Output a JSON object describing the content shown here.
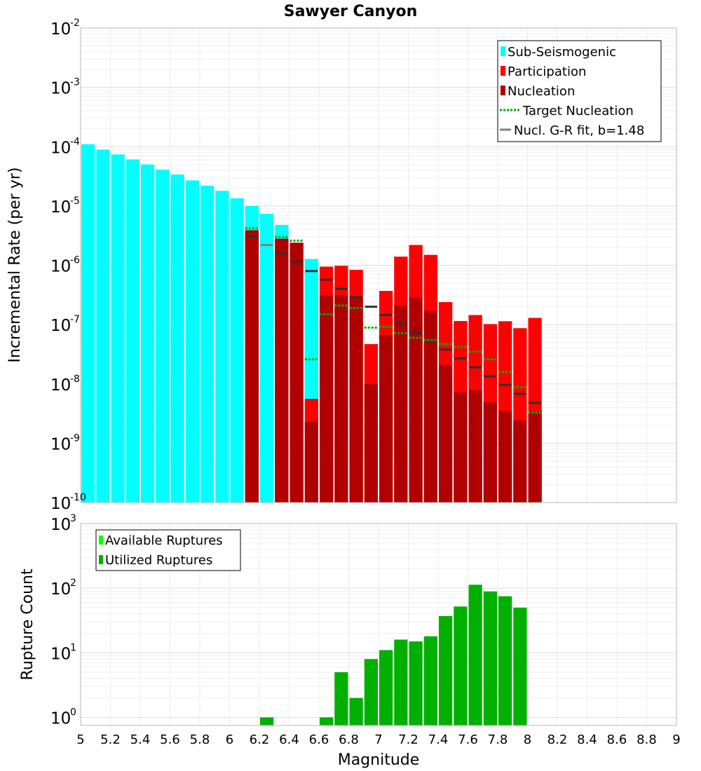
{
  "title": "Sawyer Canyon",
  "colors": {
    "sub_seismogenic": "#00ffff",
    "participation": "#ff0000",
    "nucleation": "#b00000",
    "target_nucleation": "#00b000",
    "gr_fit": "#808080",
    "available": "#00ff00",
    "utilized": "#00b000"
  },
  "chart_data": [
    {
      "type": "bar",
      "panel": "top",
      "title": "Sawyer Canyon",
      "xlabel": "Magnitude",
      "ylabel": "Incremental Rate (per yr)",
      "yscale": "log",
      "xlim": [
        5,
        9
      ],
      "ylim": [
        1e-10,
        0.01
      ],
      "bin_width": 0.1,
      "legend_position": "top-right",
      "legend": [
        "Sub-Seismogenic",
        "Participation",
        "Nucleation",
        "Target Nucleation",
        "Nucl. G-R fit, b=1.48"
      ],
      "y_tick_exponents": [
        "-10",
        "-9",
        "-8",
        "-7",
        "-6",
        "-5",
        "-4",
        "-3",
        "-2"
      ],
      "sub_seismogenic": {
        "x": [
          5.05,
          5.15,
          5.25,
          5.35,
          5.45,
          5.55,
          5.65,
          5.75,
          5.85,
          5.95,
          6.05,
          6.15,
          6.25,
          6.35,
          6.55
        ],
        "values": [
          0.00011,
          8.9e-05,
          7.4e-05,
          6.1e-05,
          5e-05,
          4.1e-05,
          3.4e-05,
          2.7e-05,
          2.2e-05,
          1.8e-05,
          1.35e-05,
          1e-05,
          7.4e-06,
          4.8e-06,
          1.28e-06
        ]
      },
      "participation": {
        "x": [
          6.15,
          6.35,
          6.45,
          6.55,
          6.65,
          6.75,
          6.85,
          6.95,
          7.05,
          7.15,
          7.25,
          7.35,
          7.45,
          7.55,
          7.65,
          7.75,
          7.85,
          7.95,
          8.05
        ],
        "values": [
          3.9e-06,
          2.8e-06,
          2.4e-06,
          5.6e-09,
          9.5e-07,
          9.8e-07,
          8.4e-07,
          4.7e-08,
          3.7e-07,
          1.4e-06,
          2.2e-06,
          1.5e-06,
          2.4e-07,
          1.15e-07,
          1.45e-07,
          1.02e-07,
          1.14e-07,
          8.7e-08,
          1.3e-07
        ]
      },
      "nucleation": {
        "x": [
          6.15,
          6.35,
          6.45,
          6.55,
          6.65,
          6.75,
          6.85,
          6.95,
          7.05,
          7.15,
          7.25,
          7.35,
          7.45,
          7.55,
          7.65,
          7.75,
          7.85,
          7.95,
          8.05
        ],
        "values": [
          3.9e-06,
          2.8e-06,
          2.4e-06,
          2.3e-09,
          3.1e-07,
          3.1e-07,
          2.9e-07,
          1e-08,
          6.6e-08,
          2.1e-07,
          2.9e-07,
          1.7e-07,
          2.1e-08,
          7.2e-09,
          7.9e-09,
          4.9e-09,
          3.5e-09,
          2.4e-09,
          3.5e-09
        ]
      },
      "target_nucleation": {
        "x": [
          6.15,
          6.35,
          6.45,
          6.55,
          6.65,
          6.75,
          6.85,
          6.95,
          7.05,
          7.15,
          7.25,
          7.35,
          7.45,
          7.55,
          7.65,
          7.75,
          7.85,
          7.95,
          8.05
        ],
        "values": [
          4.2e-06,
          3e-06,
          2.6e-06,
          2.6e-08,
          1.5e-07,
          2.1e-07,
          1.9e-07,
          8.9e-08,
          9.2e-08,
          7.2e-08,
          6e-08,
          5.5e-08,
          4.7e-08,
          4.2e-08,
          3.5e-08,
          2.6e-08,
          1.6e-08,
          8.8e-09,
          3.3e-09
        ]
      },
      "gr_fit": {
        "x": [
          6.15,
          6.25,
          6.35,
          6.45,
          6.55,
          6.65,
          6.75,
          6.85,
          6.95,
          7.05,
          7.15,
          7.25,
          7.35,
          7.45,
          7.55,
          7.65,
          7.75,
          7.85,
          7.95,
          8.05
        ],
        "values": [
          3.1e-06,
          2.2e-06,
          1.6e-06,
          1.15e-06,
          8e-07,
          5.7e-07,
          4e-07,
          2.9e-07,
          2e-07,
          1.45e-07,
          1.04e-07,
          7.4e-08,
          5.3e-08,
          3.8e-08,
          2.7e-08,
          1.9e-08,
          1.35e-08,
          9.6e-09,
          6.8e-09,
          4.8e-09
        ]
      }
    },
    {
      "type": "bar",
      "panel": "bottom",
      "xlabel": "Magnitude",
      "ylabel": "Rupture Count",
      "yscale": "log",
      "xlim": [
        5,
        9
      ],
      "ylim": [
        0.75,
        1000
      ],
      "bin_width": 0.1,
      "legend_position": "top-left",
      "legend": [
        "Available Ruptures",
        "Utilized Ruptures"
      ],
      "y_tick_exponents": [
        "0",
        "1",
        "2",
        "3"
      ],
      "x_ticks": [
        "5",
        "5.2",
        "5.4",
        "5.6",
        "5.8",
        "6",
        "6.2",
        "6.4",
        "6.6",
        "6.8",
        "7",
        "7.2",
        "7.4",
        "7.6",
        "7.8",
        "8",
        "8.2",
        "8.4",
        "8.6",
        "8.8",
        "9"
      ],
      "utilized": {
        "x": [
          6.25,
          6.65,
          6.75,
          6.85,
          6.95,
          7.05,
          7.15,
          7.25,
          7.35,
          7.45,
          7.55,
          7.65,
          7.75,
          7.85,
          7.95
        ],
        "values": [
          1,
          1,
          5,
          2,
          8,
          11,
          16,
          15,
          18,
          37,
          52,
          113,
          89,
          75,
          50
        ]
      }
    }
  ]
}
